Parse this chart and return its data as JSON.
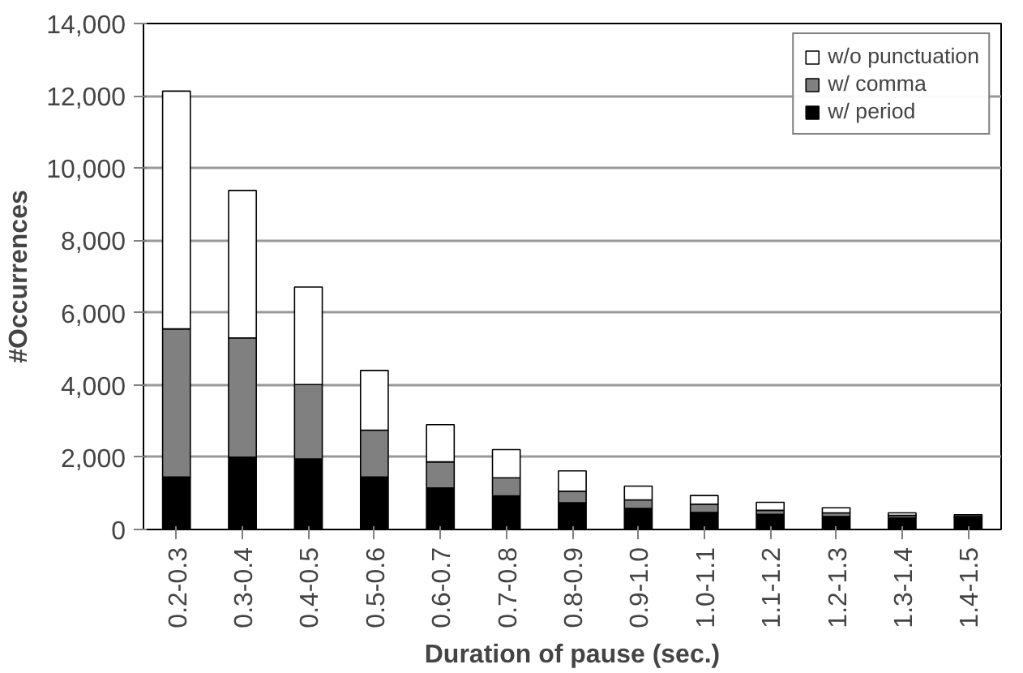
{
  "chart_data": {
    "type": "bar",
    "stacked": true,
    "xlabel": "Duration of pause (sec.)",
    "ylabel": "#Occurrences",
    "categories": [
      "0.2-0.3",
      "0.3-0.4",
      "0.4-0.5",
      "0.5-0.6",
      "0.6-0.7",
      "0.7-0.8",
      "0.8-0.9",
      "0.9-1.0",
      "1.0-1.1",
      "1.1-1.2",
      "1.2-1.3",
      "1.3-1.4",
      "1.4-1.5"
    ],
    "series": [
      {
        "name": "w/ period",
        "color": "#000000",
        "values": [
          1450,
          2000,
          1950,
          1450,
          1150,
          930,
          740,
          580,
          470,
          420,
          360,
          320,
          330
        ]
      },
      {
        "name": "w/ comma",
        "color": "#808080",
        "values": [
          4100,
          3300,
          2060,
          1300,
          720,
          500,
          320,
          240,
          230,
          110,
          100,
          70,
          40
        ]
      },
      {
        "name": "w/o punctuation",
        "color": "#ffffff",
        "values": [
          6580,
          4080,
          2700,
          1650,
          1030,
          780,
          560,
          380,
          240,
          220,
          140,
          70,
          40
        ]
      }
    ],
    "ylim": [
      0,
      14000
    ],
    "yticks": [
      {
        "value": 0,
        "label": "0"
      },
      {
        "value": 2000,
        "label": "2,000"
      },
      {
        "value": 4000,
        "label": "4,000"
      },
      {
        "value": 6000,
        "label": "6,000"
      },
      {
        "value": 8000,
        "label": "8,000"
      },
      {
        "value": 10000,
        "label": "10,000"
      },
      {
        "value": 12000,
        "label": "12,000"
      },
      {
        "value": 14000,
        "label": "14,000"
      }
    ],
    "grid": "y",
    "legend": "top right"
  }
}
